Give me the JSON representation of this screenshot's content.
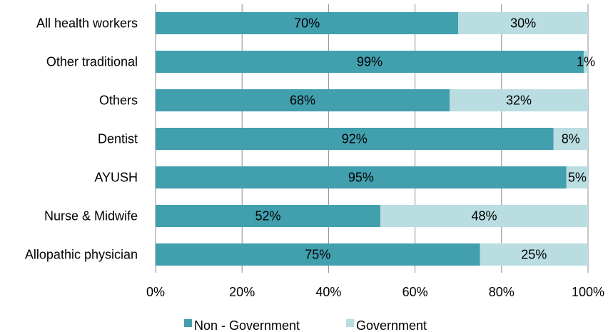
{
  "chart_data": {
    "type": "bar",
    "orientation": "horizontal",
    "stacked": "percent",
    "categories": [
      "All health workers",
      "Other traditional",
      "Others",
      "Dentist",
      "AYUSH",
      "Nurse & Midwife",
      "Allopathic physician"
    ],
    "series": [
      {
        "name": "Non - Government",
        "values": [
          70,
          99,
          68,
          92,
          95,
          52,
          75
        ],
        "labels": [
          "70%",
          "99%",
          "68%",
          "92%",
          "95%",
          "52%",
          "75%"
        ]
      },
      {
        "name": "Government",
        "values": [
          30,
          1,
          32,
          8,
          5,
          48,
          25
        ],
        "labels": [
          "30%",
          "1%",
          "32%",
          "8%",
          "5%",
          "48%",
          "25%"
        ]
      }
    ],
    "xlim": [
      0,
      100
    ],
    "xticks": [
      "0%",
      "20%",
      "40%",
      "60%",
      "80%",
      "100%"
    ],
    "grid": "vertical",
    "legend": "bottom",
    "colors": {
      "Non - Government": "#419fae",
      "Government": "#b9dde1"
    }
  }
}
